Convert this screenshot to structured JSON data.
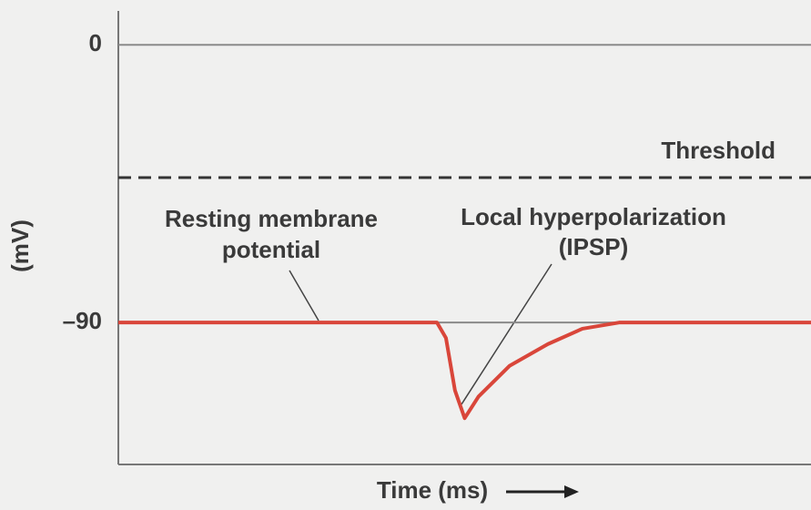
{
  "chart_data": {
    "type": "line",
    "y_label": "(mV)",
    "x_label": "Time (ms)",
    "x": [
      0,
      46,
      47.3,
      48.6,
      50,
      52,
      56.5,
      62,
      67,
      72.3,
      100
    ],
    "series": [
      {
        "name": null,
        "color": "#d9463a",
        "values": [
          -90,
          -90,
          -95,
          -112,
          -121,
          -114,
          -104,
          -97,
          -92,
          -90,
          -90
        ]
      }
    ],
    "xlim": [
      0,
      100
    ],
    "ylim": [
      -136,
      11
    ],
    "yticks": [
      0,
      {
        "value": -90,
        "label": "–90"
      }
    ],
    "grid": true,
    "threshold": {
      "label": "Threshold",
      "value": -43
    },
    "annotations": [
      {
        "lines": [
          "Resting membrane",
          "potential"
        ]
      },
      {
        "lines": [
          "Local hyperpolarization",
          "(IPSP)"
        ]
      }
    ]
  }
}
